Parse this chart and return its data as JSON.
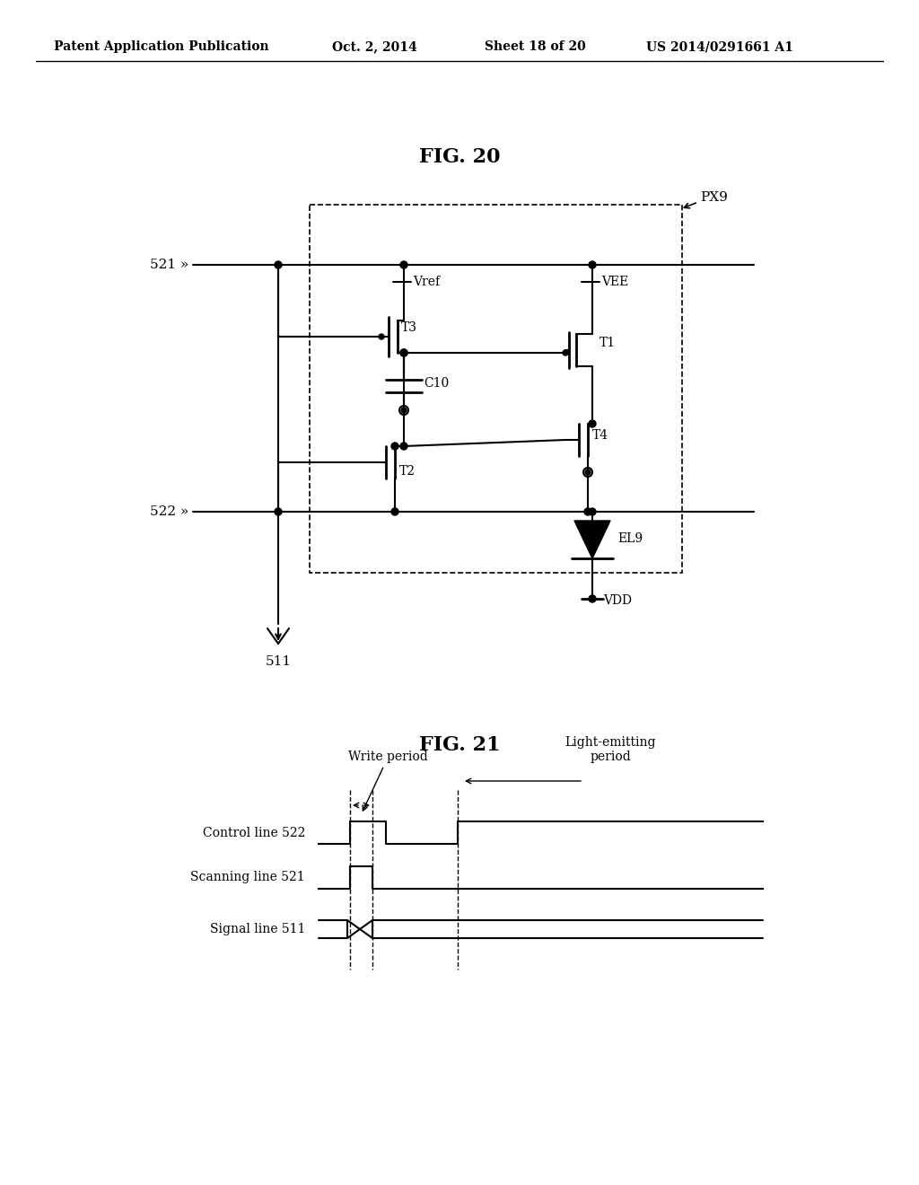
{
  "title_header": "Patent Application Publication",
  "date_header": "Oct. 2, 2014",
  "sheet_header": "Sheet 18 of 20",
  "patent_header": "US 2014/0291661 A1",
  "fig20_title": "FIG. 20",
  "fig21_title": "FIG. 21",
  "background_color": "#ffffff",
  "line_color": "#000000",
  "labels": {
    "px9": "PX9",
    "521": "521 »",
    "522": "522 »",
    "511": "511",
    "vref": "Vref",
    "vee": "VEE",
    "t1": "T1",
    "t2": "T2",
    "t3": "T3",
    "t4": "T4",
    "c10": "C10",
    "el9": "EL9",
    "vdd": "VDD",
    "write_period": "Write period",
    "light_emitting": "Light-emitting\nperiod",
    "control_line": "Control line 522",
    "scanning_line": "Scanning line 521",
    "signal_line": "Signal line 511"
  }
}
